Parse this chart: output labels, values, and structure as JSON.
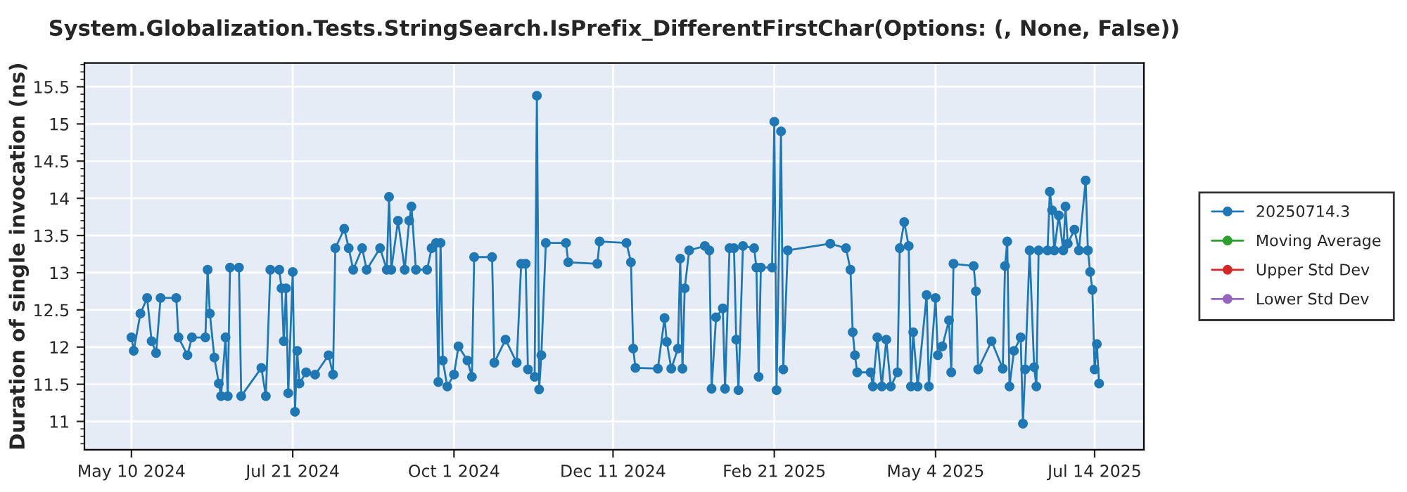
{
  "chart_data": {
    "type": "line",
    "title": "System.Globalization.Tests.StringSearch.IsPrefix_DifferentFirstChar(Options: (, None, False))",
    "ylabel": "Duration of single invocation (ns)",
    "xlim": [
      "2024-04-19",
      "2025-08-05"
    ],
    "xticks": [
      {
        "value": "2024-05-10",
        "label": "May 10 2024"
      },
      {
        "value": "2024-07-21",
        "label": "Jul 21 2024"
      },
      {
        "value": "2024-10-01",
        "label": "Oct 1 2024"
      },
      {
        "value": "2024-12-11",
        "label": "Dec 11 2024"
      },
      {
        "value": "2025-02-21",
        "label": "Feb 21 2025"
      },
      {
        "value": "2025-05-04",
        "label": "May 4 2025"
      },
      {
        "value": "2025-07-14",
        "label": "Jul 14 2025"
      }
    ],
    "ylim": [
      10.62,
      15.82
    ],
    "yticks": [
      11,
      11.5,
      12,
      12.5,
      13,
      13.5,
      14,
      14.5,
      15,
      15.5
    ],
    "grid": true,
    "legend": "right",
    "marker": "circle",
    "line_style": "solid",
    "series": [
      {
        "name": "20250714.3",
        "color": "#1f77b4",
        "x": [
          "2024-05-10",
          "2024-05-11",
          "2024-05-14",
          "2024-05-17",
          "2024-05-19",
          "2024-05-21",
          "2024-05-23",
          "2024-05-30",
          "2024-05-31",
          "2024-06-04",
          "2024-06-06",
          "2024-06-12",
          "2024-06-13",
          "2024-06-14",
          "2024-06-16",
          "2024-06-18",
          "2024-06-19",
          "2024-06-21",
          "2024-06-22",
          "2024-06-23",
          "2024-06-27",
          "2024-06-28",
          "2024-07-07",
          "2024-07-09",
          "2024-07-11",
          "2024-07-15",
          "2024-07-16",
          "2024-07-17",
          "2024-07-18",
          "2024-07-19",
          "2024-07-21",
          "2024-07-22",
          "2024-07-23",
          "2024-07-24",
          "2024-07-27",
          "2024-07-31",
          "2024-08-06",
          "2024-08-08",
          "2024-08-09",
          "2024-08-13",
          "2024-08-15",
          "2024-08-17",
          "2024-08-21",
          "2024-08-23",
          "2024-08-29",
          "2024-09-01",
          "2024-09-02",
          "2024-09-03",
          "2024-09-06",
          "2024-09-09",
          "2024-09-11",
          "2024-09-12",
          "2024-09-14",
          "2024-09-19",
          "2024-09-21",
          "2024-09-23",
          "2024-09-24",
          "2024-09-25",
          "2024-09-26",
          "2024-09-28",
          "2024-10-01",
          "2024-10-03",
          "2024-10-07",
          "2024-10-09",
          "2024-10-10",
          "2024-10-18",
          "2024-10-19",
          "2024-10-24",
          "2024-10-29",
          "2024-10-31",
          "2024-11-02",
          "2024-11-03",
          "2024-11-06",
          "2024-11-07",
          "2024-11-08",
          "2024-11-09",
          "2024-11-11",
          "2024-11-20",
          "2024-11-21",
          "2024-12-04",
          "2024-12-05",
          "2024-12-17",
          "2024-12-19",
          "2024-12-20",
          "2024-12-21",
          "2024-12-31",
          "2025-01-03",
          "2025-01-04",
          "2025-01-06",
          "2025-01-09",
          "2025-01-10",
          "2025-01-11",
          "2025-01-12",
          "2025-01-14",
          "2025-01-21",
          "2025-01-23",
          "2025-01-24",
          "2025-01-26",
          "2025-01-29",
          "2025-01-30",
          "2025-02-01",
          "2025-02-03",
          "2025-02-04",
          "2025-02-05",
          "2025-02-07",
          "2025-02-12",
          "2025-02-13",
          "2025-02-14",
          "2025-02-15",
          "2025-02-20",
          "2025-02-21",
          "2025-02-22",
          "2025-02-24",
          "2025-02-25",
          "2025-02-27",
          "2025-03-18",
          "2025-03-25",
          "2025-03-27",
          "2025-03-28",
          "2025-03-29",
          "2025-03-30",
          "2025-04-05",
          "2025-04-06",
          "2025-04-08",
          "2025-04-10",
          "2025-04-12",
          "2025-04-14",
          "2025-04-17",
          "2025-04-18",
          "2025-04-20",
          "2025-04-22",
          "2025-04-23",
          "2025-04-24",
          "2025-04-26",
          "2025-04-30",
          "2025-05-01",
          "2025-05-04",
          "2025-05-05",
          "2025-05-07",
          "2025-05-10",
          "2025-05-11",
          "2025-05-12",
          "2025-05-21",
          "2025-05-22",
          "2025-05-23",
          "2025-05-29",
          "2025-06-03",
          "2025-06-04",
          "2025-06-05",
          "2025-06-06",
          "2025-06-08",
          "2025-06-11",
          "2025-06-12",
          "2025-06-13",
          "2025-06-15",
          "2025-06-17",
          "2025-06-18",
          "2025-06-19",
          "2025-06-23",
          "2025-06-24",
          "2025-06-25",
          "2025-06-26",
          "2025-06-28",
          "2025-06-30",
          "2025-07-01",
          "2025-07-02",
          "2025-07-05",
          "2025-07-07",
          "2025-07-10",
          "2025-07-11",
          "2025-07-12",
          "2025-07-13",
          "2025-07-14",
          "2025-07-15",
          "2025-07-16"
        ],
        "values": [
          12.13,
          11.95,
          12.45,
          12.66,
          12.08,
          11.92,
          12.66,
          12.66,
          12.13,
          11.89,
          12.13,
          12.13,
          13.04,
          12.45,
          11.86,
          11.51,
          11.34,
          12.13,
          11.34,
          13.07,
          13.07,
          11.34,
          11.72,
          11.34,
          13.04,
          13.04,
          12.79,
          12.08,
          12.79,
          11.38,
          13.01,
          11.13,
          11.95,
          11.51,
          11.66,
          11.63,
          11.89,
          11.63,
          13.33,
          13.59,
          13.33,
          13.04,
          13.33,
          13.04,
          13.33,
          13.04,
          14.02,
          13.04,
          13.7,
          13.04,
          13.7,
          13.89,
          13.04,
          13.04,
          13.33,
          13.4,
          11.53,
          13.4,
          11.82,
          11.47,
          11.63,
          12.01,
          11.82,
          11.6,
          13.21,
          13.21,
          11.79,
          12.1,
          11.79,
          13.12,
          13.12,
          11.7,
          11.6,
          15.38,
          11.43,
          11.89,
          13.4,
          13.4,
          13.14,
          13.12,
          13.42,
          13.4,
          13.14,
          11.98,
          11.72,
          11.71,
          12.39,
          12.07,
          11.71,
          11.98,
          13.19,
          11.71,
          12.79,
          13.3,
          13.36,
          13.3,
          11.44,
          12.4,
          12.52,
          11.44,
          13.33,
          13.33,
          12.1,
          11.42,
          13.36,
          13.33,
          13.07,
          11.6,
          13.07,
          13.07,
          15.03,
          11.42,
          14.9,
          11.7,
          13.3,
          13.39,
          13.33,
          13.04,
          12.2,
          11.89,
          11.66,
          11.66,
          11.47,
          12.13,
          11.47,
          12.1,
          11.47,
          11.66,
          13.33,
          13.68,
          13.36,
          11.47,
          12.2,
          11.47,
          12.7,
          11.47,
          12.66,
          11.89,
          12.01,
          12.36,
          11.66,
          13.12,
          13.09,
          12.75,
          11.7,
          12.08,
          11.71,
          13.09,
          13.42,
          11.47,
          11.95,
          12.13,
          10.97,
          11.7,
          13.3,
          11.73,
          11.47,
          13.3,
          13.3,
          14.09,
          13.84,
          13.3,
          13.77,
          13.3,
          13.89,
          13.39,
          13.58,
          13.3,
          14.24,
          13.3,
          13.01,
          12.77,
          11.7,
          12.04,
          11.51
        ]
      },
      {
        "name": "Moving Average",
        "color": "#2ca02c"
      },
      {
        "name": "Upper Std Dev",
        "color": "#d62728"
      },
      {
        "name": "Lower Std Dev",
        "color": "#9467bd"
      }
    ]
  }
}
